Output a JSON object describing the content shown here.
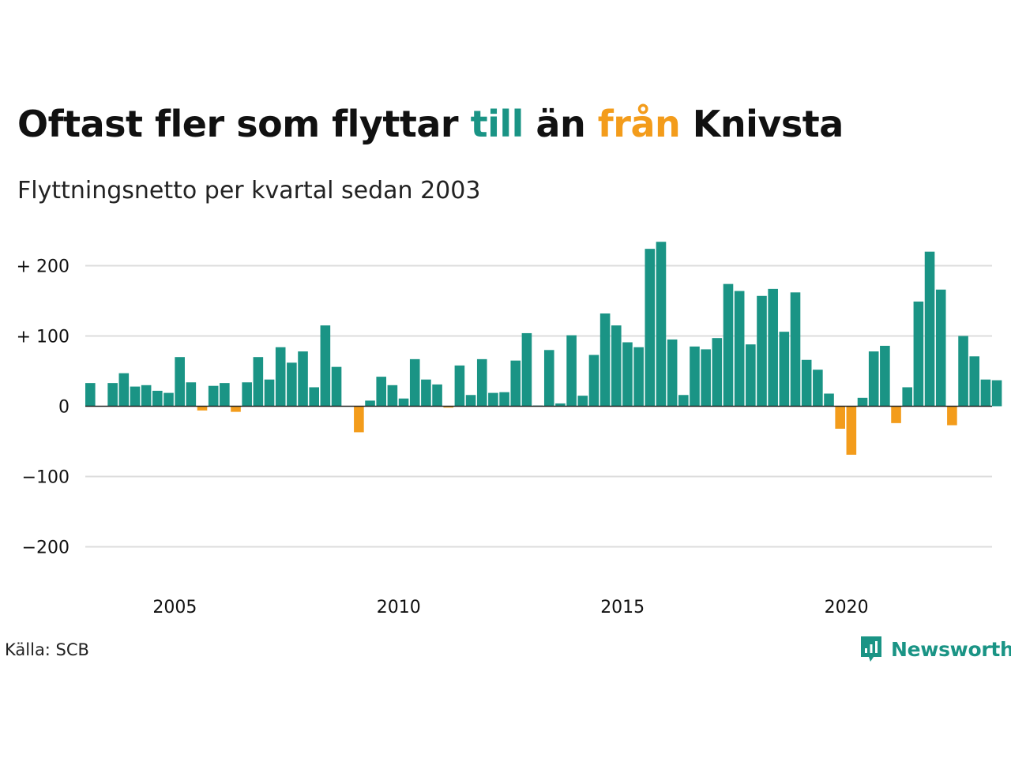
{
  "header": {
    "title_parts": [
      "Oftast fler som flyttar ",
      "till",
      " än ",
      "från",
      " Knivsta"
    ],
    "subtitle": "Flyttningsnetto per kvartal sedan 2003"
  },
  "footer": {
    "source": "Källa: SCB",
    "brand": "Newsworthy",
    "brand_icon": "newsworthy-logo-icon"
  },
  "colors": {
    "positive": "#1a9485",
    "negative": "#f39c1b",
    "text": "#111111",
    "grid": "#dddddd",
    "brand": "#1a9485"
  },
  "chart_data": {
    "type": "bar",
    "title": "Oftast fler som flyttar till än från Knivsta",
    "subtitle": "Flyttningsnetto per kvartal sedan 2003",
    "start": "2003 Q1",
    "ylim": [
      -230,
      250
    ],
    "yticks": [
      200,
      100,
      0,
      -100,
      -200
    ],
    "ytick_labels": [
      "+ 200",
      "+ 100",
      "0",
      "−100",
      "−200"
    ],
    "xticks": [
      "2005",
      "2010",
      "2015",
      "2020"
    ],
    "grid": true,
    "values": [
      33,
      0,
      33,
      47,
      28,
      30,
      22,
      19,
      70,
      34,
      -6,
      29,
      33,
      -8,
      34,
      70,
      38,
      84,
      62,
      78,
      27,
      115,
      56,
      0,
      -37,
      8,
      42,
      30,
      11,
      67,
      38,
      31,
      -2,
      58,
      16,
      67,
      19,
      20,
      65,
      104,
      1,
      80,
      4,
      101,
      15,
      73,
      132,
      115,
      91,
      84,
      224,
      234,
      95,
      16,
      85,
      81,
      97,
      174,
      164,
      88,
      157,
      167,
      106,
      162,
      66,
      52,
      18,
      -32,
      -69,
      12,
      78,
      86,
      -24,
      27,
      149,
      220,
      166,
      -27,
      100,
      71,
      38,
      37
    ]
  }
}
